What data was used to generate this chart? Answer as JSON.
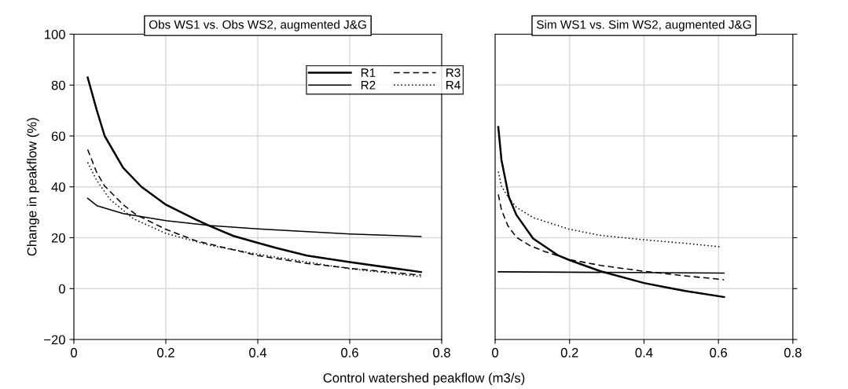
{
  "chart_data": [
    {
      "type": "line",
      "title": "Obs WS1 vs. Obs WS2, augmented J&G",
      "xlabel": "Control watershed peakflow (m3/s)",
      "ylabel": "Change in peakflow (%)",
      "xlim": [
        0,
        0.8
      ],
      "xticks": [
        0,
        0.2,
        0.4,
        0.6,
        0.8
      ],
      "ylim": [
        -20,
        100
      ],
      "yticks": [
        {
          "value": -20,
          "label": "−20"
        },
        0,
        20,
        40,
        60,
        80,
        100
      ],
      "grid": true,
      "legend": "top right",
      "series": [
        {
          "name": "R1",
          "color": "#000000",
          "line_style": "solid",
          "x": [
            0.03,
            0.05,
            0.067,
            0.107,
            0.147,
            0.2,
            0.267,
            0.296,
            0.347,
            0.4,
            0.44,
            0.507,
            0.6,
            0.755
          ],
          "values": [
            83,
            70,
            60,
            47.5,
            40,
            33,
            27,
            24.6,
            20.7,
            18,
            16,
            13,
            10.4,
            6.5
          ]
        },
        {
          "name": "R2",
          "color": "#000000",
          "line_style": "solid",
          "x": [
            0.03,
            0.05,
            0.107,
            0.2,
            0.296,
            0.4,
            0.6,
            0.755
          ],
          "values": [
            35.5,
            32.6,
            29.5,
            26.7,
            24.8,
            23.5,
            21.5,
            20.5
          ]
        },
        {
          "name": "R3",
          "color": "#000000",
          "line_style": "dashed",
          "x": [
            0.03,
            0.05,
            0.067,
            0.107,
            0.136,
            0.2,
            0.267,
            0.4,
            0.507,
            0.6,
            0.755
          ],
          "values": [
            54.7,
            45.5,
            40.3,
            33,
            29,
            23.3,
            18.7,
            13,
            9.9,
            8,
            5.3
          ]
        },
        {
          "name": "R4",
          "color": "#000000",
          "line_style": "dotted",
          "x": [
            0.03,
            0.05,
            0.079,
            0.13,
            0.2,
            0.296,
            0.4,
            0.6,
            0.755
          ],
          "values": [
            49.6,
            42.4,
            35,
            27.4,
            21.7,
            17,
            13.5,
            7.8,
            4.7
          ]
        }
      ]
    },
    {
      "type": "line",
      "title": "Sim WS1 vs. Sim WS2, augmented J&G",
      "xlim": [
        0,
        0.8
      ],
      "xticks": [
        0,
        0.2,
        0.4,
        0.6,
        0.8
      ],
      "ylim": [
        -20,
        100
      ],
      "yticks": [
        -20,
        0,
        20,
        40,
        60,
        80,
        100
      ],
      "grid": true,
      "tick_labels": "x",
      "series": [
        {
          "color": "#000000",
          "line_style": "solid",
          "x": [
            0.0085,
            0.017,
            0.037,
            0.057,
            0.102,
            0.17,
            0.2,
            0.284,
            0.4,
            0.455,
            0.511,
            0.615
          ],
          "values": [
            63.5,
            50.6,
            36,
            29,
            19.7,
            13,
            11.2,
            6.8,
            2.2,
            0.6,
            -0.9,
            -3.3
          ]
        },
        {
          "color": "#000000",
          "line_style": "solid",
          "x": [
            0.0085,
            0.615
          ],
          "values": [
            6.6,
            6.1
          ]
        },
        {
          "color": "#000000",
          "line_style": "dashed",
          "x": [
            0.0085,
            0.017,
            0.034,
            0.057,
            0.091,
            0.131,
            0.2,
            0.284,
            0.4,
            0.511,
            0.615
          ],
          "values": [
            37,
            31,
            24.8,
            20.2,
            17.1,
            14.7,
            11.4,
            9.1,
            6.8,
            5,
            3.5
          ]
        },
        {
          "color": "#000000",
          "line_style": "dotted",
          "x": [
            0.0085,
            0.017,
            0.034,
            0.057,
            0.102,
            0.2,
            0.284,
            0.4,
            0.511,
            0.606
          ],
          "values": [
            46,
            40.3,
            36.2,
            32,
            27.9,
            23.3,
            20.9,
            19.2,
            17.8,
            16.4
          ]
        }
      ]
    }
  ]
}
